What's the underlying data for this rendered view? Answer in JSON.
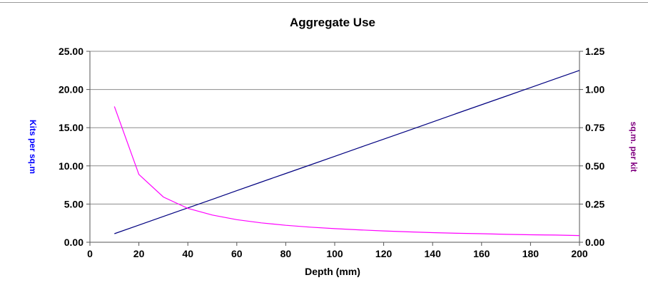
{
  "chart_data": {
    "type": "line",
    "title": "Aggregate Use",
    "xlabel": "Depth (mm)",
    "ylabel_left": "Kits per sq.m",
    "ylabel_right": "sq.m. per kit",
    "xlim": [
      0,
      200
    ],
    "ylim_left": [
      0,
      25
    ],
    "ylim_right": [
      0,
      1.25
    ],
    "x_ticks": [
      "0",
      "20",
      "40",
      "60",
      "80",
      "100",
      "120",
      "140",
      "160",
      "180",
      "200"
    ],
    "y_left_ticks": [
      "0.00",
      "5.00",
      "10.00",
      "15.00",
      "20.00",
      "25.00"
    ],
    "y_right_ticks": [
      "0.00",
      "0.25",
      "0.50",
      "0.75",
      "1.00",
      "1.25"
    ],
    "grid": "horizontal",
    "colors": {
      "left_series": "#000080",
      "right_series": "#ff00ff",
      "left_axis_label": "#0000ff",
      "right_axis_label": "#800080"
    },
    "series": [
      {
        "axis": "left",
        "x": [
          10,
          20,
          30,
          40,
          50,
          60,
          70,
          80,
          90,
          100,
          110,
          120,
          130,
          140,
          150,
          160,
          170,
          180,
          190,
          200
        ],
        "values": [
          1.12,
          2.25,
          3.38,
          4.5,
          5.62,
          6.75,
          7.88,
          9.0,
          10.12,
          11.25,
          12.38,
          13.5,
          14.62,
          15.75,
          16.88,
          18.0,
          19.12,
          20.25,
          21.38,
          22.5
        ]
      },
      {
        "axis": "right",
        "x": [
          10,
          20,
          30,
          40,
          50,
          60,
          70,
          80,
          90,
          100,
          110,
          120,
          130,
          140,
          150,
          160,
          170,
          180,
          190,
          200
        ],
        "values": [
          0.889,
          0.444,
          0.296,
          0.222,
          0.178,
          0.148,
          0.127,
          0.111,
          0.099,
          0.089,
          0.081,
          0.074,
          0.068,
          0.063,
          0.059,
          0.056,
          0.052,
          0.049,
          0.047,
          0.044
        ]
      }
    ]
  }
}
